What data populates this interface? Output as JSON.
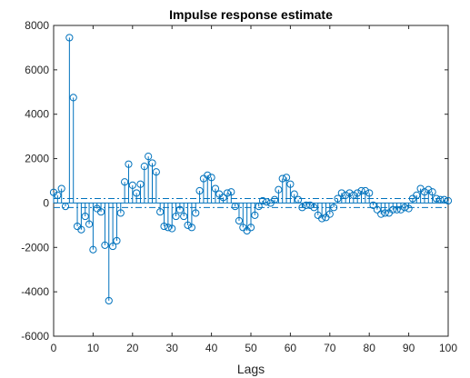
{
  "chart_data": {
    "type": "stem",
    "title": "Impulse response estimate",
    "xlabel": "Lags",
    "ylabel": "",
    "xlim": [
      0,
      100
    ],
    "ylim": [
      -6000,
      8000
    ],
    "xticks": [
      0,
      10,
      20,
      30,
      40,
      50,
      60,
      70,
      80,
      90,
      100
    ],
    "yticks": [
      -6000,
      -4000,
      -2000,
      0,
      2000,
      4000,
      6000,
      8000
    ],
    "grid": false,
    "colors": {
      "stem": "#0072BD",
      "confidence": "#0072BD",
      "axes": "#262626"
    },
    "confidence_bounds": [
      -200,
      200
    ],
    "x": [
      0,
      1,
      2,
      3,
      4,
      5,
      6,
      7,
      8,
      9,
      10,
      11,
      12,
      13,
      14,
      15,
      16,
      17,
      18,
      19,
      20,
      21,
      22,
      23,
      24,
      25,
      26,
      27,
      28,
      29,
      30,
      31,
      32,
      33,
      34,
      35,
      36,
      37,
      38,
      39,
      40,
      41,
      42,
      43,
      44,
      45,
      46,
      47,
      48,
      49,
      50,
      51,
      52,
      53,
      54,
      55,
      56,
      57,
      58,
      59,
      60,
      61,
      62,
      63,
      64,
      65,
      66,
      67,
      68,
      69,
      70,
      71,
      72,
      73,
      74,
      75,
      76,
      77,
      78,
      79,
      80,
      81,
      82,
      83,
      84,
      85,
      86,
      87,
      88,
      89,
      90,
      91,
      92,
      93,
      94,
      95,
      96,
      97,
      98,
      99,
      100
    ],
    "values": [
      480,
      350,
      650,
      -150,
      7450,
      4750,
      -1050,
      -1200,
      -600,
      -950,
      -2100,
      -250,
      -400,
      -1900,
      -4400,
      -1950,
      -1700,
      -450,
      950,
      1750,
      800,
      450,
      850,
      1650,
      2100,
      1800,
      1400,
      -400,
      -1050,
      -1100,
      -1150,
      -600,
      -300,
      -600,
      -1000,
      -1100,
      -450,
      550,
      1100,
      1250,
      1150,
      650,
      400,
      250,
      450,
      500,
      -150,
      -800,
      -1100,
      -1250,
      -1100,
      -550,
      -150,
      100,
      50,
      0,
      150,
      600,
      1100,
      1150,
      850,
      400,
      150,
      -200,
      -100,
      -100,
      -200,
      -550,
      -700,
      -650,
      -500,
      -200,
      200,
      450,
      350,
      450,
      350,
      450,
      550,
      550,
      450,
      -100,
      -300,
      -500,
      -450,
      -450,
      -300,
      -300,
      -300,
      -200,
      -250,
      200,
      350,
      650,
      500,
      600,
      500,
      200,
      150,
      150,
      100
    ]
  }
}
